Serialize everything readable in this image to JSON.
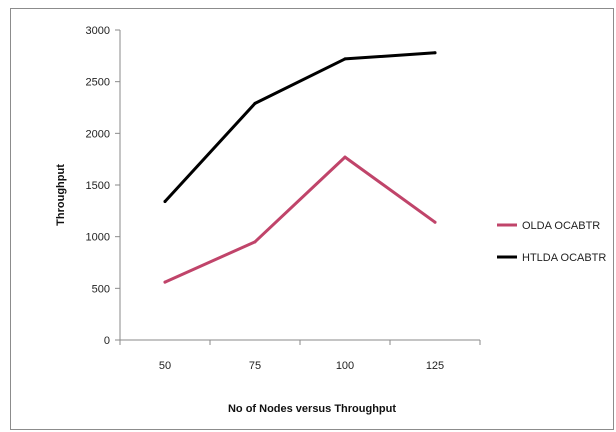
{
  "chart_data": {
    "type": "line",
    "title": "",
    "xlabel": "No of Nodes versus Throughput",
    "ylabel": "Throughput",
    "categories": [
      "50",
      "75",
      "100",
      "125"
    ],
    "ylim": [
      0,
      3000
    ],
    "yticks": [
      0,
      500,
      1000,
      1500,
      2000,
      2500,
      3000
    ],
    "grid": false,
    "legend_position": "right",
    "series": [
      {
        "name": "OLDA OCABTR",
        "color": "#c0446a",
        "values": [
          560,
          950,
          1770,
          1140
        ]
      },
      {
        "name": "HTLDA OCABTR",
        "color": "#000000",
        "values": [
          1340,
          2290,
          2720,
          2780
        ]
      }
    ]
  }
}
